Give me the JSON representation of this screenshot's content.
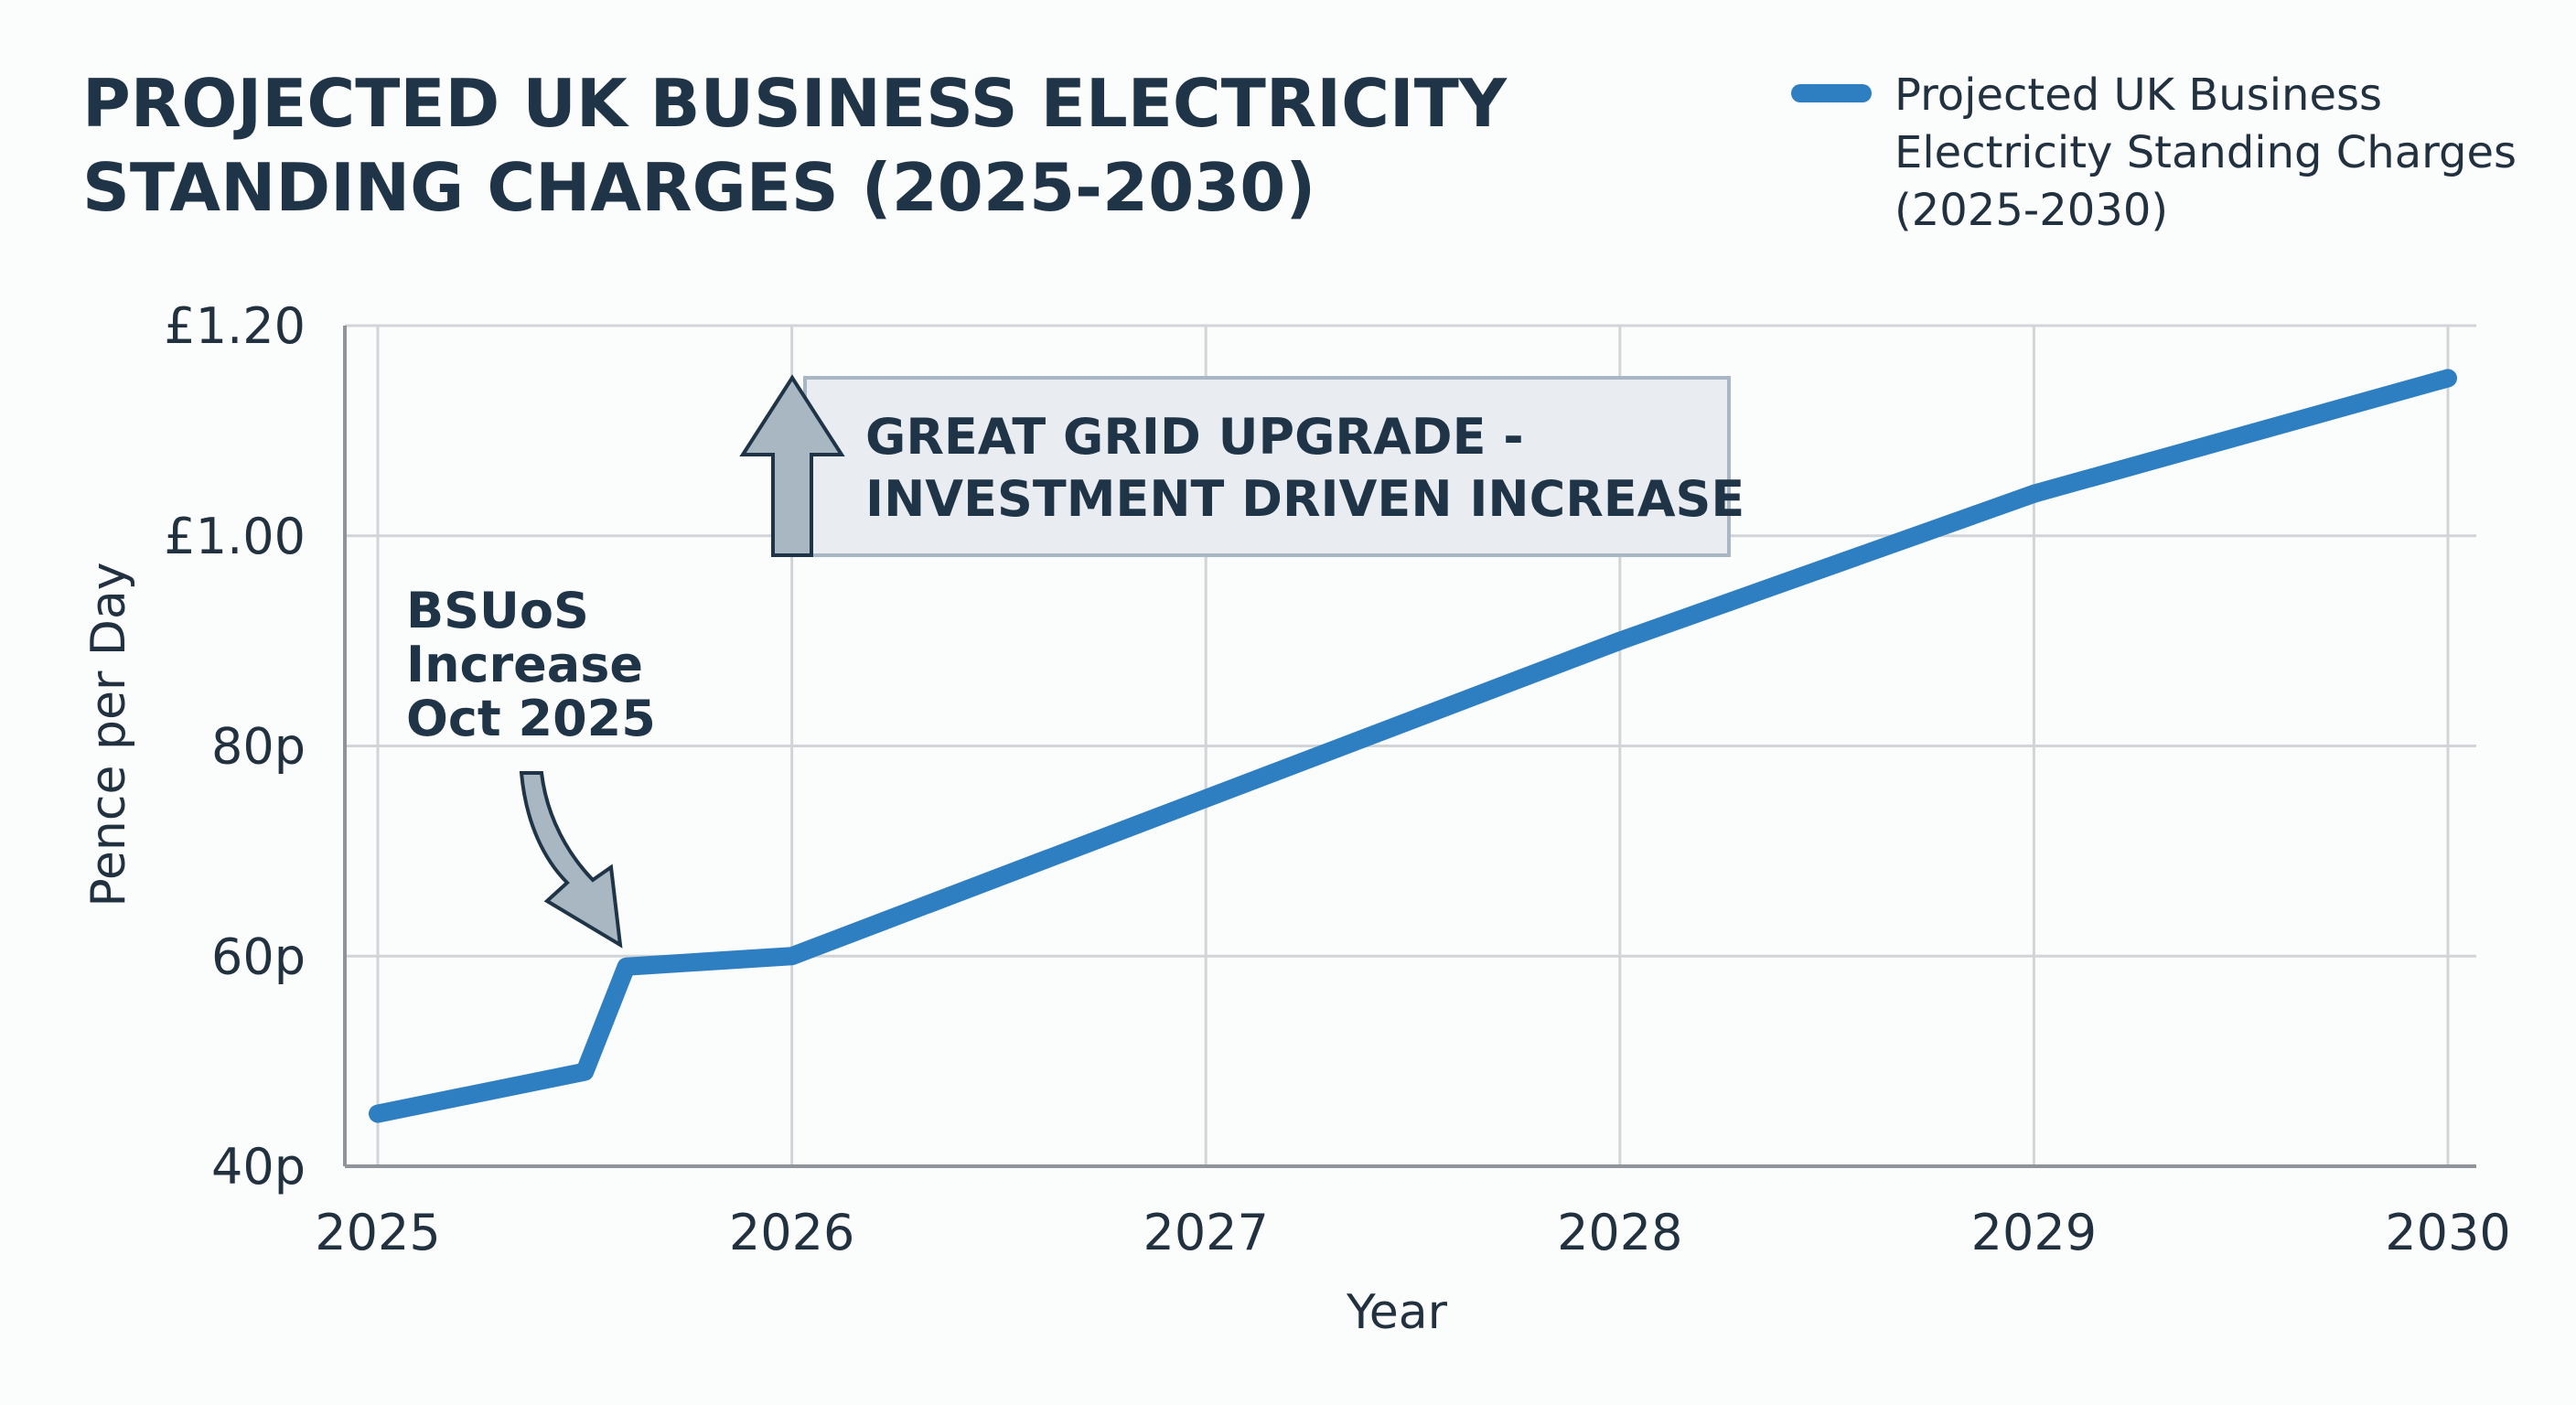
{
  "chart_data": {
    "type": "line",
    "title_lines": [
      "PROJECTED UK BUSINESS ELECTRICITY",
      "STANDING CHARGES (2025-2030)"
    ],
    "xlabel": "Year",
    "ylabel": "Pence per Day",
    "xlim": [
      2025,
      2030
    ],
    "ylim": [
      40,
      120
    ],
    "x_ticks": [
      2025,
      2026,
      2027,
      2028,
      2029,
      2030
    ],
    "x_tick_labels": [
      "2025",
      "2026",
      "2027",
      "2028",
      "2029",
      "2030"
    ],
    "y_ticks": [
      40,
      60,
      80,
      100,
      120
    ],
    "y_tick_labels": [
      "40p",
      "60p",
      "80p",
      "£1.00",
      "£1.20"
    ],
    "grid": true,
    "legend_placement": "top-right",
    "series": [
      {
        "name": "Projected UK Business Electricity Standing Charges (2025-2030)",
        "legend_lines": [
          "Projected UK Business",
          "Electricity Standing Charges",
          "(2025-2030)"
        ],
        "color": "#2e7fc1",
        "x": [
          2025,
          2025.5,
          2025.6,
          2026,
          2027,
          2028,
          2029,
          2030
        ],
        "y": [
          45,
          49,
          59,
          60,
          75,
          90,
          104,
          115
        ]
      }
    ],
    "annotations": [
      {
        "lines": [
          "BSUoS",
          "Increase",
          "Oct 2025"
        ],
        "arrow": "curved-down",
        "x": 2025.6,
        "y": 59
      },
      {
        "lines": [
          "GREAT GRID UPGRADE -",
          "INVESTMENT DRIVEN INCREASE"
        ],
        "arrow": "up",
        "x": 2026
      }
    ]
  }
}
